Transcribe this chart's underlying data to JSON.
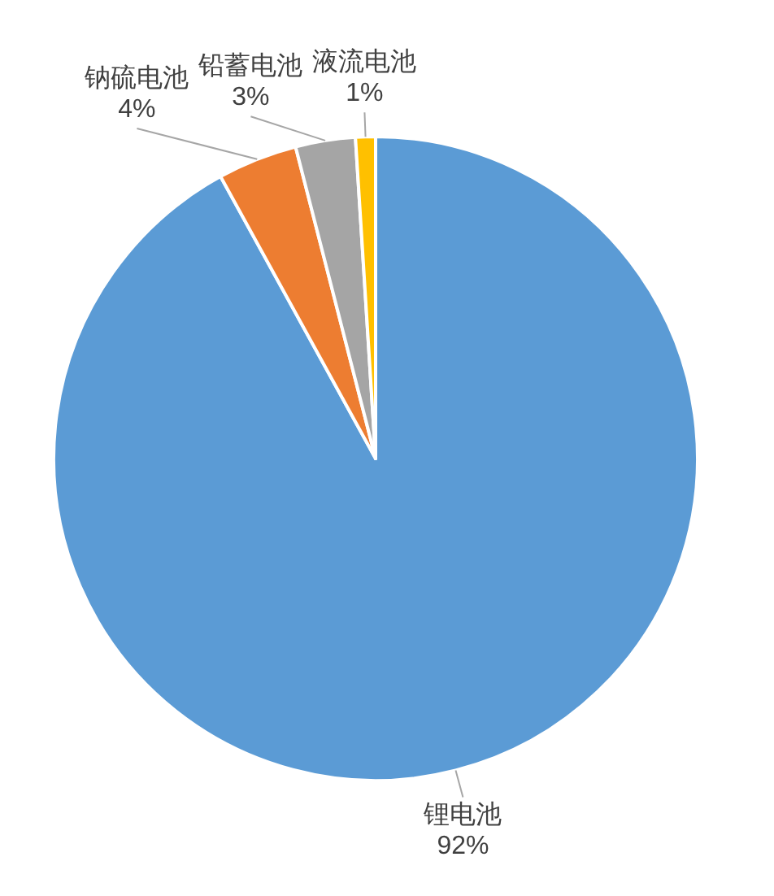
{
  "chart_data": {
    "type": "pie",
    "categories": [
      "锂电池",
      "钠硫电池",
      "铅蓄电池",
      "液流电池"
    ],
    "values": [
      92,
      4,
      3,
      1
    ],
    "value_labels": [
      "92%",
      "4%",
      "3%",
      "1%"
    ],
    "colors": [
      "#5b9bd5",
      "#ed7d31",
      "#a5a5a5",
      "#ffc000"
    ]
  }
}
